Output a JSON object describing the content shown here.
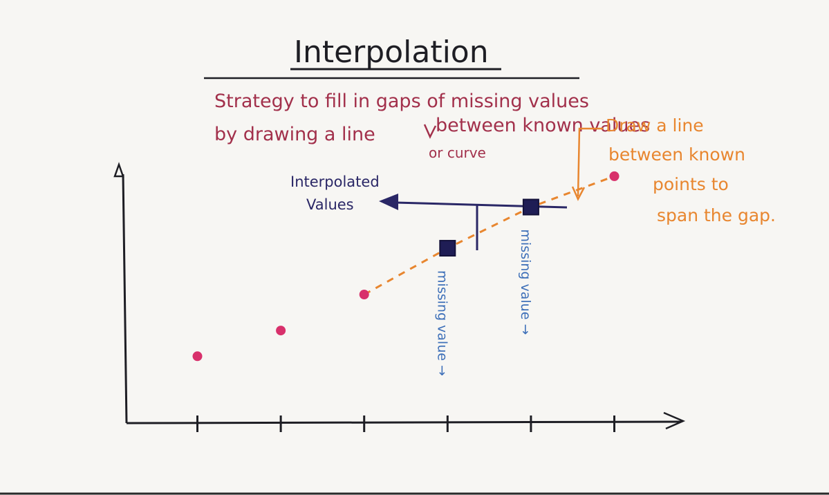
{
  "title": "Interpolation",
  "definition": {
    "line1": "Strategy to fill in gaps of missing values",
    "line2a": "by drawing a line",
    "line2b": "between known values",
    "line3": "or curve"
  },
  "interpolated_label": {
    "line1": "Interpolated",
    "line2": "Values"
  },
  "draw_note": {
    "line1": "Draw a line",
    "line2": "between known",
    "line3": "points to",
    "line4": "span the gap."
  },
  "missing_labels": [
    "missing value →",
    "missing value →"
  ],
  "colors": {
    "ink": "#1e1e24",
    "pink": "#d8306b",
    "crimson": "#a2304b",
    "navy": "#2a2766",
    "orange": "#e8862f",
    "blue": "#3d6fb8",
    "missing_square": "#1f1d55"
  },
  "chart_data": {
    "type": "scatter",
    "x_ticks": [
      1,
      2,
      3,
      4,
      5,
      6
    ],
    "xlim": [
      0.15,
      6.8
    ],
    "ylim": [
      0,
      5
    ],
    "known_points": [
      {
        "x": 1,
        "y": 1.3
      },
      {
        "x": 2,
        "y": 1.8
      },
      {
        "x": 3,
        "y": 2.5
      }
    ],
    "known_point_after_gap": {
      "x": 6,
      "y": 4.8
    },
    "interpolated_points": [
      {
        "x": 4,
        "y": 3.4
      },
      {
        "x": 5,
        "y": 4.2
      }
    ],
    "interpolation_line": [
      {
        "x": 3,
        "y": 2.5
      },
      {
        "x": 4,
        "y": 3.4
      },
      {
        "x": 5,
        "y": 4.2
      },
      {
        "x": 6,
        "y": 4.8
      }
    ]
  }
}
